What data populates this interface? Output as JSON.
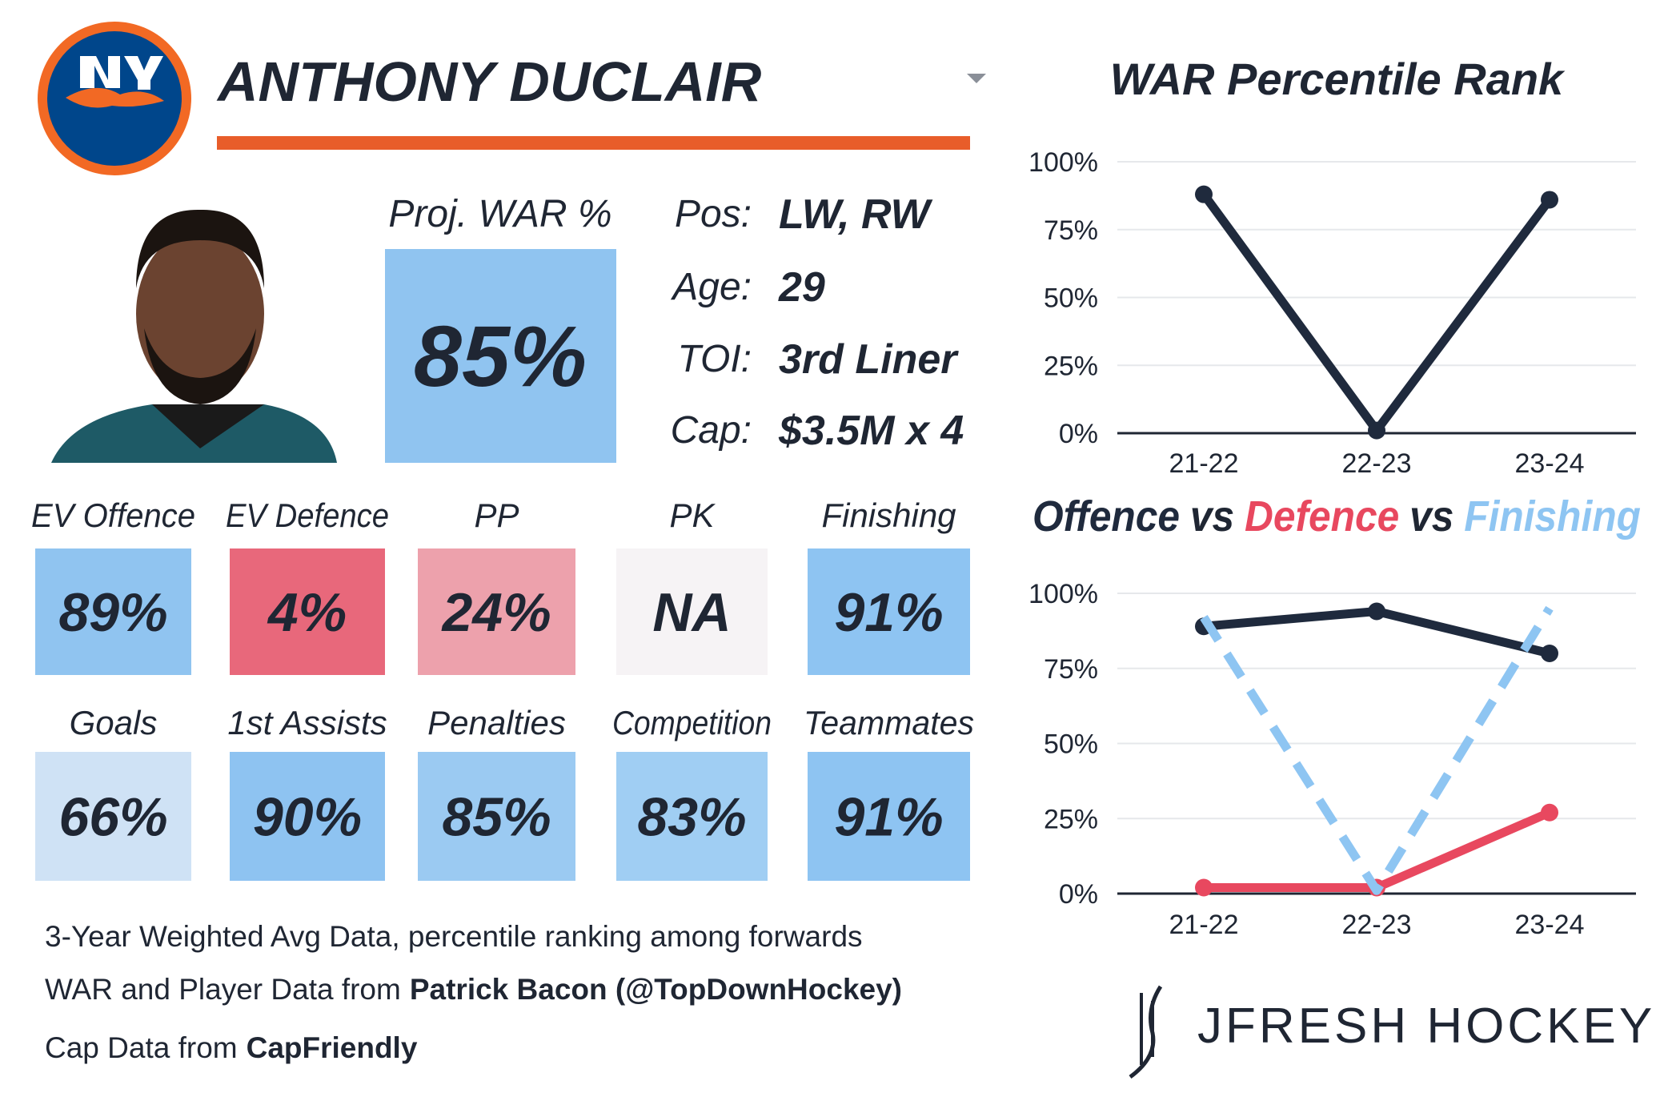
{
  "player": {
    "name": "ANTHONY DUCLAIR",
    "proj_war_label": "Proj. WAR %",
    "proj_war": "85%",
    "proj_war_color": "#90c4f0",
    "info": [
      {
        "label": "Pos:",
        "value": "LW, RW"
      },
      {
        "label": "Age:",
        "value": "29"
      },
      {
        "label": "TOI:",
        "value": "3rd Liner"
      },
      {
        "label": "Cap:",
        "value": "$3.5M x 4"
      }
    ]
  },
  "tiles": [
    [
      {
        "label": "EV Offence",
        "value": "89%",
        "color": "#90c4f0"
      },
      {
        "label": "EV Defence",
        "value": "4%",
        "color": "#e8687b"
      },
      {
        "label": "PP",
        "value": "24%",
        "color": "#eda1ac"
      },
      {
        "label": "PK",
        "value": "NA",
        "color": "#f6f3f5"
      },
      {
        "label": "Finishing",
        "value": "91%",
        "color": "#8ec4f2"
      }
    ],
    [
      {
        "label": "Goals",
        "value": "66%",
        "color": "#cfe2f5"
      },
      {
        "label": "1st Assists",
        "value": "90%",
        "color": "#8ec3f1"
      },
      {
        "label": "Penalties",
        "value": "85%",
        "color": "#9bcaf2"
      },
      {
        "label": "Competition",
        "value": "83%",
        "color": "#a0cef3"
      },
      {
        "label": "Teammates",
        "value": "91%",
        "color": "#8ec4f2"
      }
    ]
  ],
  "notes": [
    {
      "text": "3-Year Weighted Avg Data, percentile ranking among forwards"
    },
    {
      "text": "WAR and Player Data from",
      "bold": "Patrick Bacon (@TopDownHockey)"
    },
    {
      "text": "Cap Data from",
      "bold": "CapFriendly"
    }
  ],
  "brand": "JFRESH HOCKEY",
  "chart_data": [
    {
      "type": "line",
      "title": "WAR Percentile Rank",
      "categories": [
        "21-22",
        "22-23",
        "23-24"
      ],
      "series": [
        {
          "name": "WAR",
          "color": "#1f2a3d",
          "values": [
            88,
            1,
            86
          ]
        }
      ],
      "ylim": [
        0,
        100
      ],
      "yticks": [
        {
          "value": 0,
          "label": "0%"
        },
        {
          "value": 25,
          "label": "25%"
        },
        {
          "value": 50,
          "label": "50%"
        },
        {
          "value": 75,
          "label": "75%"
        },
        {
          "value": 100,
          "label": "100%"
        }
      ],
      "grid": true
    },
    {
      "type": "line",
      "title_connector": "vs",
      "categories": [
        "21-22",
        "22-23",
        "23-24"
      ],
      "series": [
        {
          "name": "Offence",
          "color": "#1f2a3d",
          "values": [
            89,
            94,
            80
          ]
        },
        {
          "name": "Defence",
          "color": "#e8485f",
          "values": [
            2,
            2,
            27
          ]
        },
        {
          "name": "Finishing",
          "color": "#8ec5f2",
          "values": [
            92,
            1,
            95
          ],
          "dashed": true
        }
      ],
      "ylim": [
        0,
        100
      ],
      "yticks": [
        {
          "value": 0,
          "label": "0%"
        },
        {
          "value": 25,
          "label": "25%"
        },
        {
          "value": 50,
          "label": "50%"
        },
        {
          "value": 75,
          "label": "75%"
        },
        {
          "value": 100,
          "label": "100%"
        }
      ],
      "grid": true
    }
  ]
}
